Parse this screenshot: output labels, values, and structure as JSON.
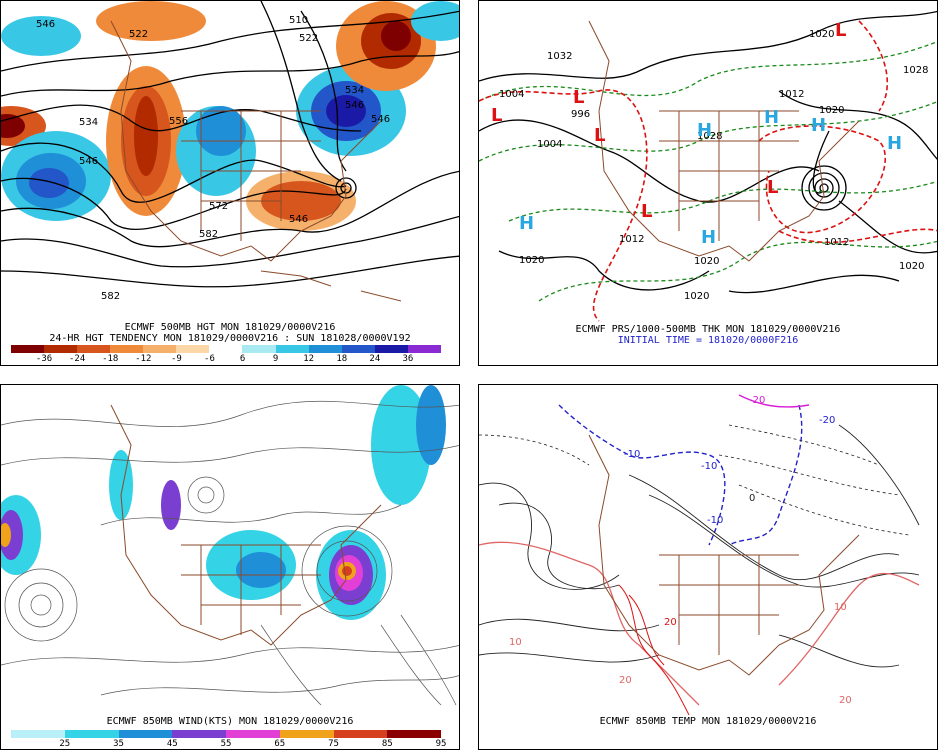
{
  "panels": {
    "top_left": {
      "title": "ECMWF 500MB HGT MON 181029/0000V216",
      "subtitle": "24-HR HGT TENDENCY MON 181029/0000V216 : SUN 181028/0000V192",
      "contour_labels": [
        "546",
        "522",
        "510",
        "522",
        "534",
        "546",
        "534",
        "546",
        "556",
        "546",
        "572",
        "546",
        "582",
        "582"
      ],
      "colorbar": {
        "ticks": [
          "-36",
          "-24",
          "-18",
          "-12",
          "-9",
          "-6",
          "6",
          "9",
          "12",
          "18",
          "24",
          "36"
        ],
        "colors": [
          "#7f0000",
          "#b22a00",
          "#d7561d",
          "#ef8a3b",
          "#f5b16b",
          "#fbd6a6",
          "#ffffff",
          "#a9e9f2",
          "#39c7e6",
          "#1f8fd8",
          "#2256c9",
          "#1a1aa6",
          "#8a2ad2"
        ]
      }
    },
    "top_right": {
      "title": "ECMWF PRS/1000-500MB THK MON 181029/0000V216",
      "subtitle": "INITIAL TIME = 181020/0000F216",
      "subtitle_color": "#2222cc",
      "pressure_labels": [
        "1032",
        "1004",
        "996",
        "1004",
        "1028",
        "1012",
        "1020",
        "1020",
        "1012",
        "1020",
        "1020",
        "1028",
        "1012",
        "1020",
        "1020"
      ],
      "highs": [
        "H",
        "H",
        "H",
        "H",
        "H",
        "H"
      ],
      "lows": [
        "L",
        "L",
        "L",
        "L",
        "L",
        "L"
      ],
      "high_color": "#2aa6e0",
      "low_color": "#dd1111"
    },
    "bottom_left": {
      "title": "ECMWF 850MB WIND(KTS) MON 181029/0000V216",
      "colorbar": {
        "ticks": [
          "25",
          "35",
          "45",
          "55",
          "65",
          "75",
          "85",
          "95"
        ],
        "colors": [
          "#b9f0f7",
          "#34d3e6",
          "#1f8fd8",
          "#7a3fd1",
          "#e23fd6",
          "#f0a21a",
          "#d6401f",
          "#8a0000"
        ]
      }
    },
    "bottom_right": {
      "title": "ECMWF 850MB TEMP MON 181029/0000V216",
      "contour_labels": [
        "-10",
        "-10",
        "-10",
        "-20",
        "-20",
        "0",
        "10",
        "10",
        "20",
        "20",
        "20"
      ]
    }
  }
}
